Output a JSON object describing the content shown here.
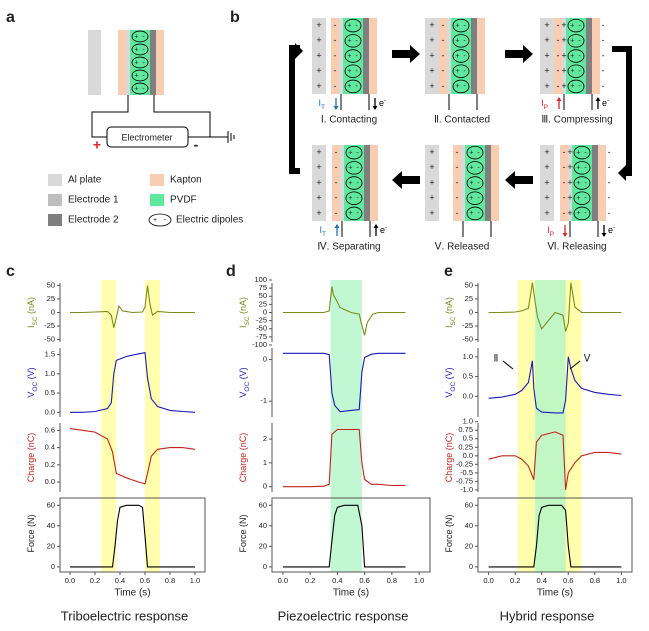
{
  "symbols": {
    "plus": "+",
    "minus": "-"
  },
  "panel_a": {
    "label": "a",
    "meter": "Electrometer"
  },
  "legend": [
    {
      "name": "Al plate",
      "color": "#d9d9d9"
    },
    {
      "name": "Electrode 1",
      "color": "#bfbfbf"
    },
    {
      "name": "Electrode 2",
      "color": "#7f7f7f"
    },
    {
      "name": "Kapton",
      "color": "#f9cdb2"
    },
    {
      "name": "PVDF",
      "color": "#5fe89e"
    },
    {
      "name": "Electric dipoles"
    }
  ],
  "panel_b": {
    "label": "b",
    "electron": [
      "e",
      "-"
    ],
    "currents": {
      "T": {
        "label": [
          "I",
          "T"
        ],
        "color": "#1f6fbf"
      },
      "P": {
        "label": [
          "I",
          "P"
        ],
        "color": "#d9262b"
      }
    },
    "stages": [
      {
        "name": "Ⅰ. Contacting",
        "current": "T",
        "dir": "down"
      },
      {
        "name": "Ⅱ. Contacted"
      },
      {
        "name": "Ⅲ. Compressing",
        "current": "P",
        "dir": "up"
      },
      {
        "name": "Ⅳ. Separating",
        "current": "T",
        "dir": "up"
      },
      {
        "name": "Ⅴ. Released"
      },
      {
        "name": "Ⅵ. Releasing",
        "current": "P",
        "dir": "down"
      }
    ]
  },
  "columns": [
    {
      "label": "c",
      "caption": "Triboelectric response"
    },
    {
      "label": "d",
      "caption": "Piezoelectric response"
    },
    {
      "label": "e",
      "caption": "Hybrid response"
    }
  ],
  "chart_data": [
    {
      "type": "line",
      "ylabel": [
        "I",
        "SC",
        " (nA)"
      ],
      "color": "#7a8c1e",
      "xlim": [
        -0.08,
        1.08
      ],
      "ylim": [
        -60,
        60
      ],
      "yticks": [
        -50,
        -25,
        0,
        25,
        50
      ],
      "spans": [
        {
          "from": 0.25,
          "to": 0.37,
          "color": "#ffff99"
        },
        {
          "from": 0.6,
          "to": 0.72,
          "color": "#ffff99"
        }
      ],
      "x": [
        0,
        0.1,
        0.2,
        0.3,
        0.33,
        0.35,
        0.37,
        0.39,
        0.42,
        0.5,
        0.58,
        0.6,
        0.62,
        0.64,
        0.66,
        0.7,
        0.8,
        0.9,
        1.0
      ],
      "values": [
        0,
        0,
        1,
        2,
        -5,
        -28,
        -10,
        12,
        3,
        0,
        1,
        10,
        50,
        15,
        -5,
        2,
        0,
        0,
        0
      ]
    },
    {
      "type": "line",
      "ylabel": [
        "V",
        "OC",
        " (V)"
      ],
      "color": "#1a1ab8",
      "xlim": [
        -0.08,
        1.08
      ],
      "ylim": [
        -0.2,
        1.75
      ],
      "yticks": [
        {
          "value": 0,
          "label": "0.0"
        },
        0.5,
        {
          "value": 1,
          "label": "1.0"
        },
        1.5
      ],
      "spans": [
        {
          "from": 0.25,
          "to": 0.37,
          "color": "#ffff99"
        },
        {
          "from": 0.6,
          "to": 0.72,
          "color": "#ffff99"
        }
      ],
      "x": [
        0,
        0.1,
        0.2,
        0.3,
        0.33,
        0.35,
        0.37,
        0.45,
        0.55,
        0.6,
        0.62,
        0.65,
        0.7,
        0.8,
        0.9,
        1.0
      ],
      "values": [
        0,
        0,
        0.02,
        0.1,
        0.25,
        1.0,
        1.35,
        1.45,
        1.52,
        1.55,
        0.9,
        0.35,
        0.15,
        0.05,
        0.02,
        0
      ]
    },
    {
      "type": "line",
      "ylabel": [
        "Charge (nC)"
      ],
      "color": "#c0261e",
      "xlim": [
        -0.08,
        1.08
      ],
      "ylim": [
        -0.15,
        0.72
      ],
      "yticks": [
        {
          "value": 0,
          "label": "0.0"
        },
        0.2,
        0.4,
        0.6
      ],
      "spans": [
        {
          "from": 0.25,
          "to": 0.37,
          "color": "#ffff99"
        },
        {
          "from": 0.6,
          "to": 0.72,
          "color": "#ffff99"
        }
      ],
      "x": [
        0,
        0.1,
        0.2,
        0.3,
        0.34,
        0.37,
        0.45,
        0.55,
        0.6,
        0.62,
        0.65,
        0.7,
        0.8,
        0.9,
        1.0
      ],
      "values": [
        0.62,
        0.6,
        0.58,
        0.5,
        0.35,
        0.1,
        0.05,
        0,
        -0.02,
        0.1,
        0.3,
        0.38,
        0.4,
        0.4,
        0.38
      ]
    },
    {
      "type": "line",
      "ylabel": [
        "Force (N)"
      ],
      "xlabel": "Time (s)",
      "color": "#000000",
      "xlim": [
        -0.08,
        1.08
      ],
      "ylim": [
        -5,
        70
      ],
      "yticks": [
        0,
        20,
        40,
        60
      ],
      "xticks": [
        {
          "value": 0,
          "label": "0.0"
        },
        0.2,
        0.4,
        0.6,
        0.8,
        {
          "value": 1,
          "label": "1.0"
        }
      ],
      "spans": [
        {
          "from": 0.25,
          "to": 0.37,
          "color": "#ffff99"
        },
        {
          "from": 0.6,
          "to": 0.72,
          "color": "#ffff99"
        }
      ],
      "x": [
        0,
        0.1,
        0.2,
        0.3,
        0.34,
        0.36,
        0.38,
        0.4,
        0.45,
        0.55,
        0.58,
        0.6,
        0.62,
        0.7,
        0.8,
        0.9,
        1.0
      ],
      "values": [
        0,
        0,
        0,
        0,
        0,
        20,
        45,
        58,
        60,
        60,
        58,
        30,
        0,
        0,
        0,
        0,
        0
      ]
    },
    {
      "type": "line",
      "ylabel": [
        "I",
        "SC",
        " (nA)"
      ],
      "color": "#7a8c1e",
      "xlim": [
        -0.08,
        1.08
      ],
      "ylim": [
        -100,
        100
      ],
      "yticks": [
        -100,
        -75,
        -50,
        -25,
        0,
        25,
        50,
        75,
        100
      ],
      "spans": [
        {
          "from": 0.35,
          "to": 0.58,
          "color": "#b3f5c9"
        }
      ],
      "x": [
        0,
        0.1,
        0.2,
        0.3,
        0.34,
        0.36,
        0.37,
        0.39,
        0.42,
        0.5,
        0.56,
        0.58,
        0.6,
        0.62,
        0.66,
        0.7,
        0.8,
        0.9
      ],
      "values": [
        0,
        0,
        0,
        0,
        5,
        80,
        55,
        40,
        15,
        0,
        -5,
        -40,
        -70,
        -30,
        -5,
        0,
        0,
        0
      ]
    },
    {
      "type": "line",
      "ylabel": [
        "V",
        "OC",
        " (V)"
      ],
      "color": "#1a1ab8",
      "xlim": [
        -0.08,
        1.08
      ],
      "ylim": [
        -1.45,
        0.35
      ],
      "yticks": [
        -1,
        0
      ],
      "spans": [
        {
          "from": 0.35,
          "to": 0.58,
          "color": "#b3f5c9"
        }
      ],
      "x": [
        0,
        0.1,
        0.2,
        0.3,
        0.34,
        0.36,
        0.38,
        0.42,
        0.5,
        0.56,
        0.58,
        0.6,
        0.65,
        0.7,
        0.8,
        0.9
      ],
      "values": [
        0.15,
        0.15,
        0.15,
        0.15,
        0.12,
        -0.8,
        -1.1,
        -1.25,
        -1.22,
        -1.2,
        -0.3,
        0.05,
        0.13,
        0.15,
        0.15,
        0.15
      ]
    },
    {
      "type": "line",
      "ylabel": [
        "Charge (nC)"
      ],
      "color": "#c0261e",
      "xlim": [
        -0.08,
        1.08
      ],
      "ylim": [
        -0.35,
        2.8
      ],
      "yticks": [
        0,
        1,
        2
      ],
      "spans": [
        {
          "from": 0.35,
          "to": 0.58,
          "color": "#b3f5c9"
        }
      ],
      "x": [
        0,
        0.1,
        0.2,
        0.3,
        0.34,
        0.36,
        0.4,
        0.5,
        0.56,
        0.58,
        0.6,
        0.65,
        0.7,
        0.8,
        0.9
      ],
      "values": [
        0,
        0,
        0,
        0.02,
        0.1,
        2.2,
        2.4,
        2.4,
        2.4,
        1.0,
        0.3,
        0.1,
        0.1,
        0.05,
        0.05
      ]
    },
    {
      "type": "line",
      "ylabel": [
        "Force (N)"
      ],
      "xlabel": "Time (s)",
      "color": "#000000",
      "xlim": [
        -0.08,
        1.08
      ],
      "ylim": [
        -5,
        70
      ],
      "yticks": [
        0,
        20,
        40,
        60
      ],
      "xticks": [
        {
          "value": 0,
          "label": "0.0"
        },
        0.2,
        0.4,
        0.6,
        0.8,
        {
          "value": 1,
          "label": "1.0"
        }
      ],
      "spans": [
        {
          "from": 0.35,
          "to": 0.58,
          "color": "#b3f5c9"
        }
      ],
      "x": [
        0,
        0.1,
        0.2,
        0.3,
        0.34,
        0.36,
        0.38,
        0.4,
        0.45,
        0.55,
        0.58,
        0.6,
        0.7,
        0.8,
        0.9
      ],
      "values": [
        0,
        0,
        0,
        0,
        0,
        25,
        50,
        58,
        60,
        60,
        40,
        0,
        0,
        0,
        0
      ]
    },
    {
      "type": "line",
      "ylabel": [
        "I",
        "SC",
        " (nA)"
      ],
      "color": "#7a8c1e",
      "xlim": [
        -0.08,
        1.08
      ],
      "ylim": [
        -60,
        60
      ],
      "yticks": [
        -50,
        -25,
        0,
        25,
        50
      ],
      "spans": [
        {
          "from": 0.22,
          "to": 0.7,
          "color": "#ffff99"
        },
        {
          "from": 0.35,
          "to": 0.58,
          "color": "#b3f5c9"
        }
      ],
      "x": [
        0,
        0.1,
        0.2,
        0.25,
        0.3,
        0.33,
        0.35,
        0.37,
        0.4,
        0.5,
        0.56,
        0.58,
        0.6,
        0.62,
        0.65,
        0.7,
        0.8,
        0.9,
        1.0
      ],
      "values": [
        0,
        0,
        1,
        3,
        8,
        55,
        20,
        -10,
        -30,
        0,
        -5,
        -35,
        -20,
        55,
        10,
        0,
        0,
        0,
        0
      ]
    },
    {
      "type": "line",
      "ylabel": [
        "V",
        "OC",
        " (V)"
      ],
      "color": "#1a1ab8",
      "xlim": [
        -0.08,
        1.08
      ],
      "ylim": [
        -0.6,
        1.3
      ],
      "yticks": [
        {
          "value": 0,
          "label": "0.0"
        },
        0.5,
        {
          "value": 1,
          "label": "1.0"
        }
      ],
      "spans": [
        {
          "from": 0.22,
          "to": 0.7,
          "color": "#ffff99"
        },
        {
          "from": 0.35,
          "to": 0.58,
          "color": "#b3f5c9"
        }
      ],
      "annotations": [
        "Ⅱ",
        "Ⅴ"
      ],
      "x": [
        0,
        0.1,
        0.2,
        0.25,
        0.3,
        0.33,
        0.34,
        0.36,
        0.4,
        0.5,
        0.56,
        0.58,
        0.6,
        0.62,
        0.65,
        0.7,
        0.8,
        0.9,
        1.0
      ],
      "values": [
        -0.05,
        -0.02,
        0.05,
        0.15,
        0.35,
        0.9,
        0.2,
        -0.3,
        -0.4,
        -0.42,
        -0.42,
        -0.1,
        1.0,
        0.7,
        0.4,
        0.2,
        0.1,
        0.05,
        0.02
      ]
    },
    {
      "type": "line",
      "ylabel": [
        "Charge (nC)"
      ],
      "color": "#c0261e",
      "xlim": [
        -0.08,
        1.08
      ],
      "ylim": [
        -1.15,
        1.05
      ],
      "yticks": [
        {
          "value": -1,
          "label": "-1.0"
        },
        -0.75,
        -0.5,
        -0.25,
        {
          "value": 0,
          "label": "0.0"
        },
        0.25,
        0.5,
        0.75,
        {
          "value": 1,
          "label": "1.0"
        }
      ],
      "spans": [
        {
          "from": 0.22,
          "to": 0.7,
          "color": "#ffff99"
        },
        {
          "from": 0.35,
          "to": 0.58,
          "color": "#b3f5c9"
        }
      ],
      "x": [
        0,
        0.1,
        0.2,
        0.25,
        0.3,
        0.34,
        0.36,
        0.4,
        0.5,
        0.56,
        0.58,
        0.6,
        0.65,
        0.7,
        0.8,
        0.9,
        1.0
      ],
      "values": [
        -0.1,
        0,
        0,
        -0.1,
        -0.3,
        -0.7,
        0.4,
        0.6,
        0.7,
        0.6,
        -1.0,
        -0.5,
        -0.2,
        0,
        0.1,
        0.1,
        0.05
      ]
    },
    {
      "type": "line",
      "ylabel": [
        "Force (N)"
      ],
      "xlabel": "Time (s)",
      "color": "#000000",
      "xlim": [
        -0.08,
        1.08
      ],
      "ylim": [
        -5,
        70
      ],
      "yticks": [
        0,
        20,
        40,
        60
      ],
      "xticks": [
        {
          "value": 0,
          "label": "0.0"
        },
        0.2,
        0.4,
        0.6,
        0.8,
        {
          "value": 1,
          "label": "1.0"
        }
      ],
      "spans": [
        {
          "from": 0.22,
          "to": 0.7,
          "color": "#ffff99"
        },
        {
          "from": 0.35,
          "to": 0.58,
          "color": "#b3f5c9"
        }
      ],
      "x": [
        0,
        0.1,
        0.2,
        0.3,
        0.34,
        0.36,
        0.38,
        0.4,
        0.45,
        0.55,
        0.58,
        0.6,
        0.62,
        0.7,
        0.8,
        0.9,
        1.0
      ],
      "values": [
        0,
        0,
        0,
        0,
        0,
        20,
        50,
        58,
        60,
        60,
        55,
        20,
        0,
        0,
        0,
        0,
        0
      ]
    }
  ]
}
